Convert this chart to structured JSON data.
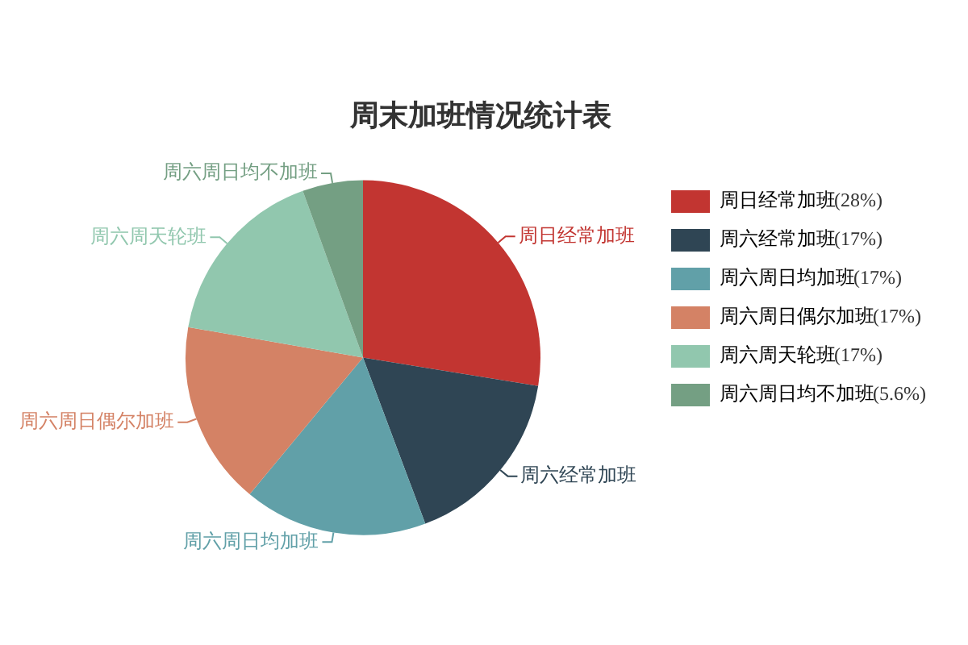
{
  "chart_data": {
    "type": "pie",
    "title": "周末加班情况统计表",
    "categories": [
      "周日经常加班",
      "周六经常加班",
      "周六周日均加班",
      "周六周日偶尔加班",
      "周六周天轮班",
      "周六周日均不加班"
    ],
    "values": [
      28,
      17,
      17,
      17,
      17,
      5.6
    ],
    "value_labels": [
      "(28%)",
      "(17%)",
      "(17%)",
      "(17%)",
      "(17%)",
      "(5.6%)"
    ],
    "colors": [
      "#c23531",
      "#2f4554",
      "#61a0a8",
      "#d48265",
      "#91c7ae",
      "#749f83"
    ],
    "legend": "right"
  }
}
